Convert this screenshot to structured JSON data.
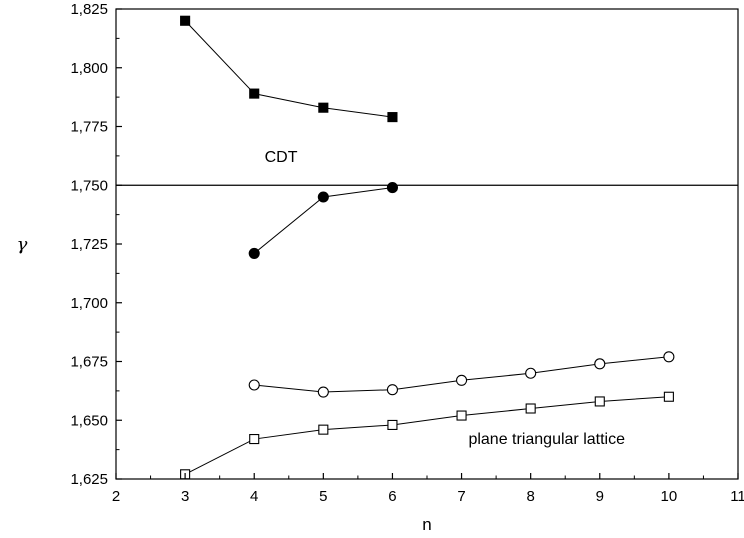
{
  "chart_data": {
    "type": "line",
    "xlabel": "n",
    "ylabel": "γ",
    "xlim": [
      2,
      11
    ],
    "ylim": [
      1.625,
      1.825
    ],
    "x_ticks": [
      "2",
      "3",
      "4",
      "5",
      "6",
      "7",
      "8",
      "9",
      "10",
      "11"
    ],
    "y_ticks": [
      "1,625",
      "1,650",
      "1,675",
      "1,700",
      "1,725",
      "1,750",
      "1,775",
      "1,800",
      "1,825"
    ],
    "grid": false,
    "reference_line": {
      "y": 1.75
    },
    "annotations": [
      {
        "text": "CDT",
        "x": 4.15,
        "y": 1.76
      },
      {
        "text": "plane triangular lattice",
        "x": 7.1,
        "y": 1.64
      }
    ],
    "series": [
      {
        "marker": "filled-square",
        "x": [
          3,
          4,
          5,
          6
        ],
        "y": [
          1.82,
          1.789,
          1.783,
          1.779
        ]
      },
      {
        "marker": "filled-circle",
        "x": [
          4,
          5,
          6
        ],
        "y": [
          1.721,
          1.745,
          1.749
        ]
      },
      {
        "marker": "open-circle",
        "x": [
          4,
          5,
          6,
          7,
          8,
          9,
          10
        ],
        "y": [
          1.665,
          1.662,
          1.663,
          1.667,
          1.67,
          1.674,
          1.677
        ]
      },
      {
        "marker": "open-square",
        "x": [
          3,
          4,
          5,
          6,
          7,
          8,
          9,
          10
        ],
        "y": [
          1.627,
          1.642,
          1.646,
          1.648,
          1.652,
          1.655,
          1.658,
          1.66
        ]
      }
    ]
  }
}
